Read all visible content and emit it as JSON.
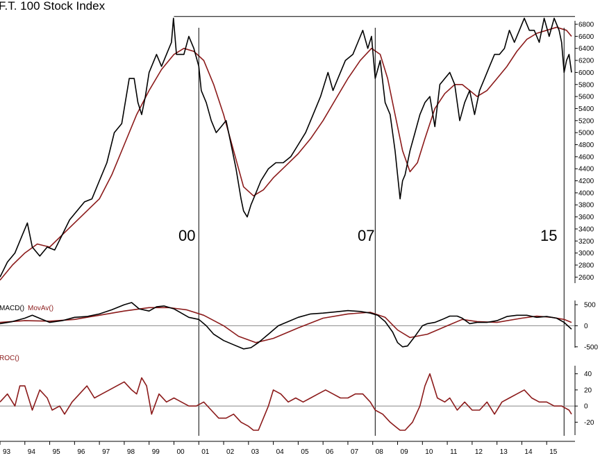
{
  "chart_data": [
    {
      "type": "line",
      "title": "F.T. 100 Stock Index",
      "ylim": [
        2500,
        6950
      ],
      "y_ticks": [
        2600,
        2800,
        3000,
        3200,
        3400,
        3600,
        3800,
        4000,
        4200,
        4400,
        4600,
        4800,
        5000,
        5200,
        5400,
        5600,
        5800,
        6000,
        6200,
        6400,
        6600,
        6800
      ],
      "x_ticks": [
        "93",
        "94",
        "95",
        "96",
        "97",
        "98",
        "99",
        "00",
        "01",
        "02",
        "03",
        "04",
        "05",
        "06",
        "07",
        "08",
        "09",
        "10",
        "11",
        "12",
        "13",
        "14",
        "15"
      ],
      "cycle_labels": [
        "00",
        "07",
        "15"
      ],
      "series": [
        {
          "color": "#000000",
          "x": [
            1993.0,
            1993.3,
            1993.6,
            1993.9,
            1994.1,
            1994.3,
            1994.6,
            1994.9,
            1995.2,
            1995.5,
            1995.8,
            1996.1,
            1996.4,
            1996.7,
            1997.0,
            1997.3,
            1997.6,
            1997.9,
            1998.2,
            1998.4,
            1998.55,
            1998.7,
            1998.85,
            1999.0,
            1999.3,
            1999.5,
            1999.7,
            1999.9,
            1999.98,
            2000.1,
            2000.4,
            2000.6,
            2000.8,
            2001.0,
            2001.1,
            2001.3,
            2001.5,
            2001.7,
            2001.9,
            2002.1,
            2002.3,
            2002.5,
            2002.7,
            2002.8,
            2002.95,
            2003.1,
            2003.3,
            2003.5,
            2003.8,
            2004.1,
            2004.4,
            2004.7,
            2005.0,
            2005.3,
            2005.6,
            2005.9,
            2006.2,
            2006.4,
            2006.6,
            2006.9,
            2007.2,
            2007.4,
            2007.6,
            2007.8,
            2007.95,
            2008.1,
            2008.3,
            2008.5,
            2008.7,
            2008.9,
            2009.0,
            2009.1,
            2009.2,
            2009.3,
            2009.5,
            2009.7,
            2009.9,
            2010.1,
            2010.3,
            2010.5,
            2010.7,
            2010.9,
            2011.1,
            2011.3,
            2011.5,
            2011.7,
            2011.9,
            2012.1,
            2012.3,
            2012.5,
            2012.7,
            2012.9,
            2013.1,
            2013.3,
            2013.5,
            2013.7,
            2013.9,
            2014.1,
            2014.3,
            2014.5,
            2014.7,
            2014.9,
            2015.1,
            2015.3,
            2015.5,
            2015.6,
            2015.7,
            2015.8,
            2015.9,
            2016.0
          ],
          "y": [
            2600,
            2850,
            3000,
            3300,
            3500,
            3100,
            2950,
            3100,
            3050,
            3300,
            3550,
            3700,
            3850,
            3900,
            4200,
            4500,
            5000,
            5150,
            5900,
            5900,
            5500,
            5300,
            5600,
            6000,
            6300,
            6100,
            6300,
            6500,
            6900,
            6300,
            6300,
            6600,
            6400,
            6100,
            5700,
            5500,
            5200,
            5000,
            5100,
            5200,
            4800,
            4400,
            3900,
            3700,
            3600,
            3800,
            4000,
            4200,
            4400,
            4500,
            4500,
            4600,
            4800,
            5000,
            5300,
            5600,
            6000,
            5700,
            5900,
            6200,
            6300,
            6500,
            6700,
            6400,
            6600,
            5900,
            6200,
            5500,
            5300,
            4700,
            4300,
            3900,
            4200,
            4300,
            4700,
            5000,
            5300,
            5500,
            5600,
            5100,
            5800,
            5900,
            6000,
            5800,
            5200,
            5500,
            5700,
            5300,
            5700,
            5900,
            6100,
            6300,
            6300,
            6400,
            6700,
            6500,
            6700,
            6900,
            6700,
            6700,
            6500,
            6900,
            6600,
            6900,
            6700,
            6500,
            6000,
            6200,
            6300,
            6000
          ]
        },
        {
          "color": "#8b1a1a",
          "x": [
            1993.0,
            1993.5,
            1994.0,
            1994.5,
            1995.0,
            1995.5,
            1996.0,
            1996.5,
            1997.0,
            1997.5,
            1998.0,
            1998.5,
            1999.0,
            1999.5,
            2000.0,
            2000.4,
            2000.8,
            2001.2,
            2001.6,
            2002.0,
            2002.4,
            2002.8,
            2003.2,
            2003.6,
            2004.0,
            2004.5,
            2005.0,
            2005.5,
            2006.0,
            2006.5,
            2007.0,
            2007.5,
            2007.95,
            2008.3,
            2008.6,
            2008.9,
            2009.2,
            2009.5,
            2009.8,
            2010.1,
            2010.5,
            2010.9,
            2011.3,
            2011.6,
            2011.9,
            2012.2,
            2012.6,
            2013.0,
            2013.4,
            2013.8,
            2014.2,
            2014.6,
            2015.0,
            2015.4,
            2015.8,
            2016.0
          ],
          "y": [
            2550,
            2800,
            3000,
            3150,
            3100,
            3300,
            3500,
            3700,
            3900,
            4300,
            4800,
            5300,
            5700,
            6050,
            6300,
            6400,
            6350,
            6200,
            5800,
            5300,
            4700,
            4100,
            3950,
            4050,
            4250,
            4450,
            4650,
            4900,
            5200,
            5550,
            5900,
            6200,
            6400,
            6300,
            5900,
            5300,
            4700,
            4350,
            4500,
            4900,
            5400,
            5650,
            5800,
            5800,
            5700,
            5600,
            5700,
            5900,
            6100,
            6350,
            6550,
            6650,
            6700,
            6750,
            6700,
            6600
          ]
        }
      ]
    },
    {
      "type": "line",
      "ylim": [
        -520,
        600
      ],
      "y_ticks": [
        "500",
        "0",
        "-500"
      ],
      "series": [
        {
          "name": "MACD()",
          "color": "#000000",
          "x": [
            1993.0,
            1993.5,
            1994.0,
            1994.3,
            1994.7,
            1995.0,
            1995.5,
            1996.0,
            1996.5,
            1997.0,
            1997.5,
            1998.0,
            1998.3,
            1998.6,
            1999.0,
            1999.3,
            1999.6,
            2000.0,
            2000.3,
            2000.6,
            2001.0,
            2001.3,
            2001.6,
            2002.0,
            2002.4,
            2002.8,
            2003.1,
            2003.4,
            2003.8,
            2004.2,
            2004.6,
            2005.0,
            2005.5,
            2006.0,
            2006.5,
            2007.0,
            2007.5,
            2007.9,
            2008.2,
            2008.5,
            2008.8,
            2009.0,
            2009.2,
            2009.4,
            2009.7,
            2010.0,
            2010.2,
            2010.5,
            2010.8,
            2011.1,
            2011.4,
            2011.6,
            2011.9,
            2012.2,
            2012.6,
            2013.0,
            2013.4,
            2013.8,
            2014.2,
            2014.6,
            2015.0,
            2015.4,
            2015.7,
            2016.0
          ],
          "y": [
            50,
            100,
            180,
            250,
            150,
            80,
            120,
            200,
            220,
            280,
            380,
            500,
            550,
            400,
            350,
            450,
            470,
            400,
            300,
            200,
            150,
            0,
            -200,
            -350,
            -450,
            -550,
            -520,
            -400,
            -200,
            0,
            100,
            200,
            280,
            300,
            330,
            360,
            340,
            300,
            250,
            100,
            -150,
            -400,
            -500,
            -480,
            -250,
            0,
            50,
            80,
            150,
            230,
            230,
            180,
            50,
            80,
            80,
            120,
            220,
            250,
            250,
            200,
            220,
            180,
            80,
            -80
          ]
        },
        {
          "name": "MovAv()",
          "color": "#8b1a1a",
          "x": [
            1993.0,
            1994.0,
            1995.0,
            1996.0,
            1997.0,
            1998.0,
            1999.0,
            1999.8,
            2000.5,
            2001.2,
            2002.0,
            2002.6,
            2003.3,
            2004.0,
            2005.0,
            2006.0,
            2007.0,
            2007.9,
            2008.5,
            2009.0,
            2009.5,
            2010.2,
            2011.0,
            2011.6,
            2012.2,
            2013.0,
            2014.0,
            2014.6,
            2015.2,
            2015.7,
            2016.0
          ],
          "y": [
            80,
            120,
            110,
            150,
            250,
            350,
            430,
            430,
            380,
            250,
            0,
            -250,
            -400,
            -300,
            -50,
            180,
            280,
            320,
            200,
            -100,
            -280,
            -200,
            0,
            150,
            100,
            80,
            180,
            230,
            200,
            150,
            80
          ]
        }
      ]
    },
    {
      "type": "line",
      "ylim": [
        -36,
        50
      ],
      "y_ticks": [
        "40",
        "20",
        "0",
        "-20"
      ],
      "series": [
        {
          "name": "ROC()",
          "color": "#8b1a1a",
          "x": [
            1993.0,
            1993.3,
            1993.6,
            1993.8,
            1994.0,
            1994.3,
            1994.6,
            1994.9,
            1995.1,
            1995.4,
            1995.6,
            1995.9,
            1996.2,
            1996.5,
            1996.8,
            1997.1,
            1997.4,
            1997.7,
            1998.0,
            1998.3,
            1998.5,
            1998.7,
            1998.9,
            1999.1,
            1999.4,
            1999.7,
            2000.0,
            2000.3,
            2000.6,
            2000.9,
            2001.2,
            2001.5,
            2001.8,
            2002.1,
            2002.4,
            2002.7,
            2003.0,
            2003.2,
            2003.4,
            2003.6,
            2003.8,
            2004.0,
            2004.3,
            2004.6,
            2004.9,
            2005.2,
            2005.5,
            2005.8,
            2006.1,
            2006.4,
            2006.7,
            2007.0,
            2007.3,
            2007.6,
            2007.9,
            2008.1,
            2008.4,
            2008.7,
            2008.9,
            2009.1,
            2009.3,
            2009.6,
            2009.9,
            2010.1,
            2010.3,
            2010.6,
            2010.9,
            2011.1,
            2011.4,
            2011.7,
            2012.0,
            2012.3,
            2012.6,
            2012.9,
            2013.2,
            2013.5,
            2013.8,
            2014.1,
            2014.4,
            2014.7,
            2015.0,
            2015.3,
            2015.6,
            2015.9,
            2016.0
          ],
          "y": [
            5,
            15,
            0,
            25,
            25,
            -5,
            20,
            10,
            -5,
            0,
            -10,
            5,
            15,
            25,
            10,
            15,
            20,
            25,
            30,
            20,
            15,
            35,
            25,
            -10,
            15,
            5,
            10,
            5,
            0,
            0,
            5,
            -5,
            -15,
            -15,
            -10,
            -20,
            -25,
            -30,
            -30,
            -15,
            0,
            20,
            15,
            5,
            10,
            5,
            10,
            15,
            20,
            15,
            10,
            10,
            15,
            15,
            5,
            -5,
            -10,
            -20,
            -25,
            -30,
            -30,
            -20,
            0,
            25,
            40,
            10,
            5,
            10,
            -5,
            5,
            -5,
            -5,
            5,
            -10,
            5,
            10,
            15,
            20,
            10,
            5,
            5,
            0,
            0,
            -5,
            -10
          ]
        }
      ]
    }
  ]
}
